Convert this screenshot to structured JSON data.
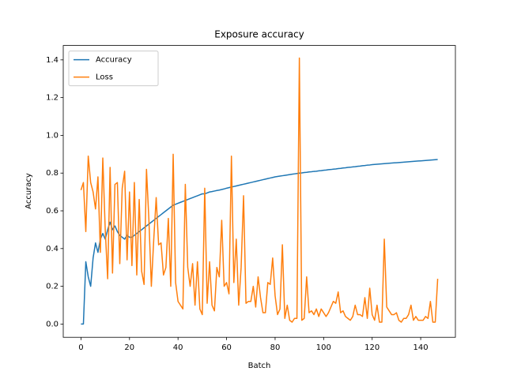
{
  "chart_data": {
    "type": "line",
    "title": "Exposure accuracy",
    "x_label": "Batch",
    "y_label": "Accuracy",
    "x": [
      0,
      1,
      2,
      3,
      4,
      5,
      6,
      7,
      8,
      9,
      10,
      11,
      12,
      13,
      14,
      15,
      16,
      17,
      18,
      19,
      20,
      21,
      22,
      23,
      24,
      25,
      26,
      27,
      28,
      29,
      30,
      31,
      32,
      33,
      34,
      35,
      36,
      37,
      38,
      39,
      40,
      41,
      42,
      43,
      44,
      45,
      46,
      47,
      48,
      49,
      50,
      51,
      52,
      53,
      54,
      55,
      56,
      57,
      58,
      59,
      60,
      61,
      62,
      63,
      64,
      65,
      66,
      67,
      68,
      69,
      70,
      71,
      72,
      73,
      74,
      75,
      76,
      77,
      78,
      79,
      80,
      81,
      82,
      83,
      84,
      85,
      86,
      87,
      88,
      89,
      90,
      91,
      92,
      93,
      94,
      95,
      96,
      97,
      98,
      99,
      100,
      101,
      102,
      103,
      104,
      105,
      106,
      107,
      108,
      109,
      110,
      111,
      112,
      113,
      114,
      115,
      116,
      117,
      118,
      119,
      120,
      121,
      122,
      123,
      124,
      125,
      126,
      127,
      128,
      129,
      130,
      131,
      132,
      133,
      134,
      135,
      136,
      137,
      138,
      139,
      140,
      141,
      142,
      143,
      144,
      145,
      146,
      147
    ],
    "series": [
      {
        "name": "Accuracy",
        "color": "#1f77b4",
        "values": [
          0.0,
          0.0,
          0.33,
          0.25,
          0.2,
          0.35,
          0.43,
          0.38,
          0.45,
          0.48,
          0.45,
          0.5,
          0.54,
          0.5,
          0.52,
          0.49,
          0.47,
          0.46,
          0.45,
          0.47,
          0.46,
          0.46,
          0.47,
          0.48,
          0.49,
          0.5,
          0.51,
          0.52,
          0.53,
          0.54,
          0.55,
          0.56,
          0.57,
          0.58,
          0.59,
          0.6,
          0.61,
          0.62,
          0.63,
          0.635,
          0.64,
          0.645,
          0.65,
          0.655,
          0.66,
          0.665,
          0.67,
          0.675,
          0.68,
          0.685,
          0.69,
          0.69,
          0.695,
          0.7,
          0.702,
          0.705,
          0.708,
          0.71,
          0.713,
          0.716,
          0.72,
          0.723,
          0.726,
          0.729,
          0.732,
          0.735,
          0.738,
          0.741,
          0.744,
          0.747,
          0.75,
          0.753,
          0.756,
          0.759,
          0.762,
          0.765,
          0.768,
          0.771,
          0.774,
          0.777,
          0.78,
          0.782,
          0.784,
          0.786,
          0.788,
          0.79,
          0.792,
          0.794,
          0.796,
          0.798,
          0.8,
          0.801,
          0.803,
          0.804,
          0.806,
          0.807,
          0.809,
          0.81,
          0.812,
          0.813,
          0.815,
          0.816,
          0.818,
          0.819,
          0.821,
          0.822,
          0.824,
          0.825,
          0.827,
          0.828,
          0.83,
          0.831,
          0.833,
          0.834,
          0.836,
          0.837,
          0.839,
          0.84,
          0.842,
          0.843,
          0.845,
          0.846,
          0.847,
          0.848,
          0.849,
          0.85,
          0.851,
          0.852,
          0.853,
          0.854,
          0.855,
          0.856,
          0.857,
          0.858,
          0.859,
          0.86,
          0.861,
          0.862,
          0.863,
          0.864,
          0.865,
          0.866,
          0.867,
          0.868,
          0.869,
          0.87,
          0.871,
          0.872
        ]
      },
      {
        "name": "Loss",
        "color": "#ff7f0e",
        "values": [
          0.71,
          0.75,
          0.49,
          0.89,
          0.75,
          0.7,
          0.61,
          0.78,
          0.38,
          0.88,
          0.5,
          0.24,
          0.83,
          0.27,
          0.74,
          0.75,
          0.32,
          0.72,
          0.81,
          0.34,
          0.7,
          0.31,
          0.75,
          0.26,
          0.66,
          0.28,
          0.21,
          0.82,
          0.55,
          0.2,
          0.45,
          0.67,
          0.42,
          0.43,
          0.26,
          0.3,
          0.56,
          0.2,
          0.9,
          0.22,
          0.12,
          0.1,
          0.08,
          0.74,
          0.3,
          0.2,
          0.32,
          0.1,
          0.33,
          0.08,
          0.05,
          0.72,
          0.11,
          0.33,
          0.1,
          0.07,
          0.3,
          0.25,
          0.55,
          0.2,
          0.22,
          0.16,
          0.89,
          0.22,
          0.45,
          0.1,
          0.3,
          0.68,
          0.11,
          0.12,
          0.12,
          0.2,
          0.09,
          0.25,
          0.14,
          0.06,
          0.06,
          0.22,
          0.21,
          0.35,
          0.15,
          0.05,
          0.08,
          0.42,
          0.03,
          0.1,
          0.02,
          0.01,
          0.03,
          0.03,
          1.41,
          0.02,
          0.03,
          0.25,
          0.06,
          0.07,
          0.05,
          0.08,
          0.04,
          0.08,
          0.06,
          0.04,
          0.06,
          0.09,
          0.12,
          0.11,
          0.17,
          0.06,
          0.07,
          0.04,
          0.03,
          0.02,
          0.04,
          0.1,
          0.05,
          0.05,
          0.04,
          0.14,
          0.03,
          0.19,
          0.05,
          0.02,
          0.1,
          0.01,
          0.01,
          0.45,
          0.09,
          0.07,
          0.05,
          0.05,
          0.06,
          0.02,
          0.01,
          0.03,
          0.03,
          0.05,
          0.1,
          0.02,
          0.04,
          0.02,
          0.02,
          0.02,
          0.04,
          0.03,
          0.12,
          0.01,
          0.01,
          0.24
        ]
      }
    ],
    "xlim": [
      -7.3,
      154.3
    ],
    "ylim": [
      -0.0703,
      1.4763
    ],
    "xticks": [
      0,
      20,
      40,
      60,
      80,
      100,
      120,
      140
    ],
    "yticks": [
      {
        "value": 0,
        "label": "0.0"
      },
      0.2,
      0.4,
      0.6,
      0.8,
      {
        "value": 1,
        "label": "1.0"
      },
      1.2,
      1.4
    ],
    "legend": "upper left"
  }
}
